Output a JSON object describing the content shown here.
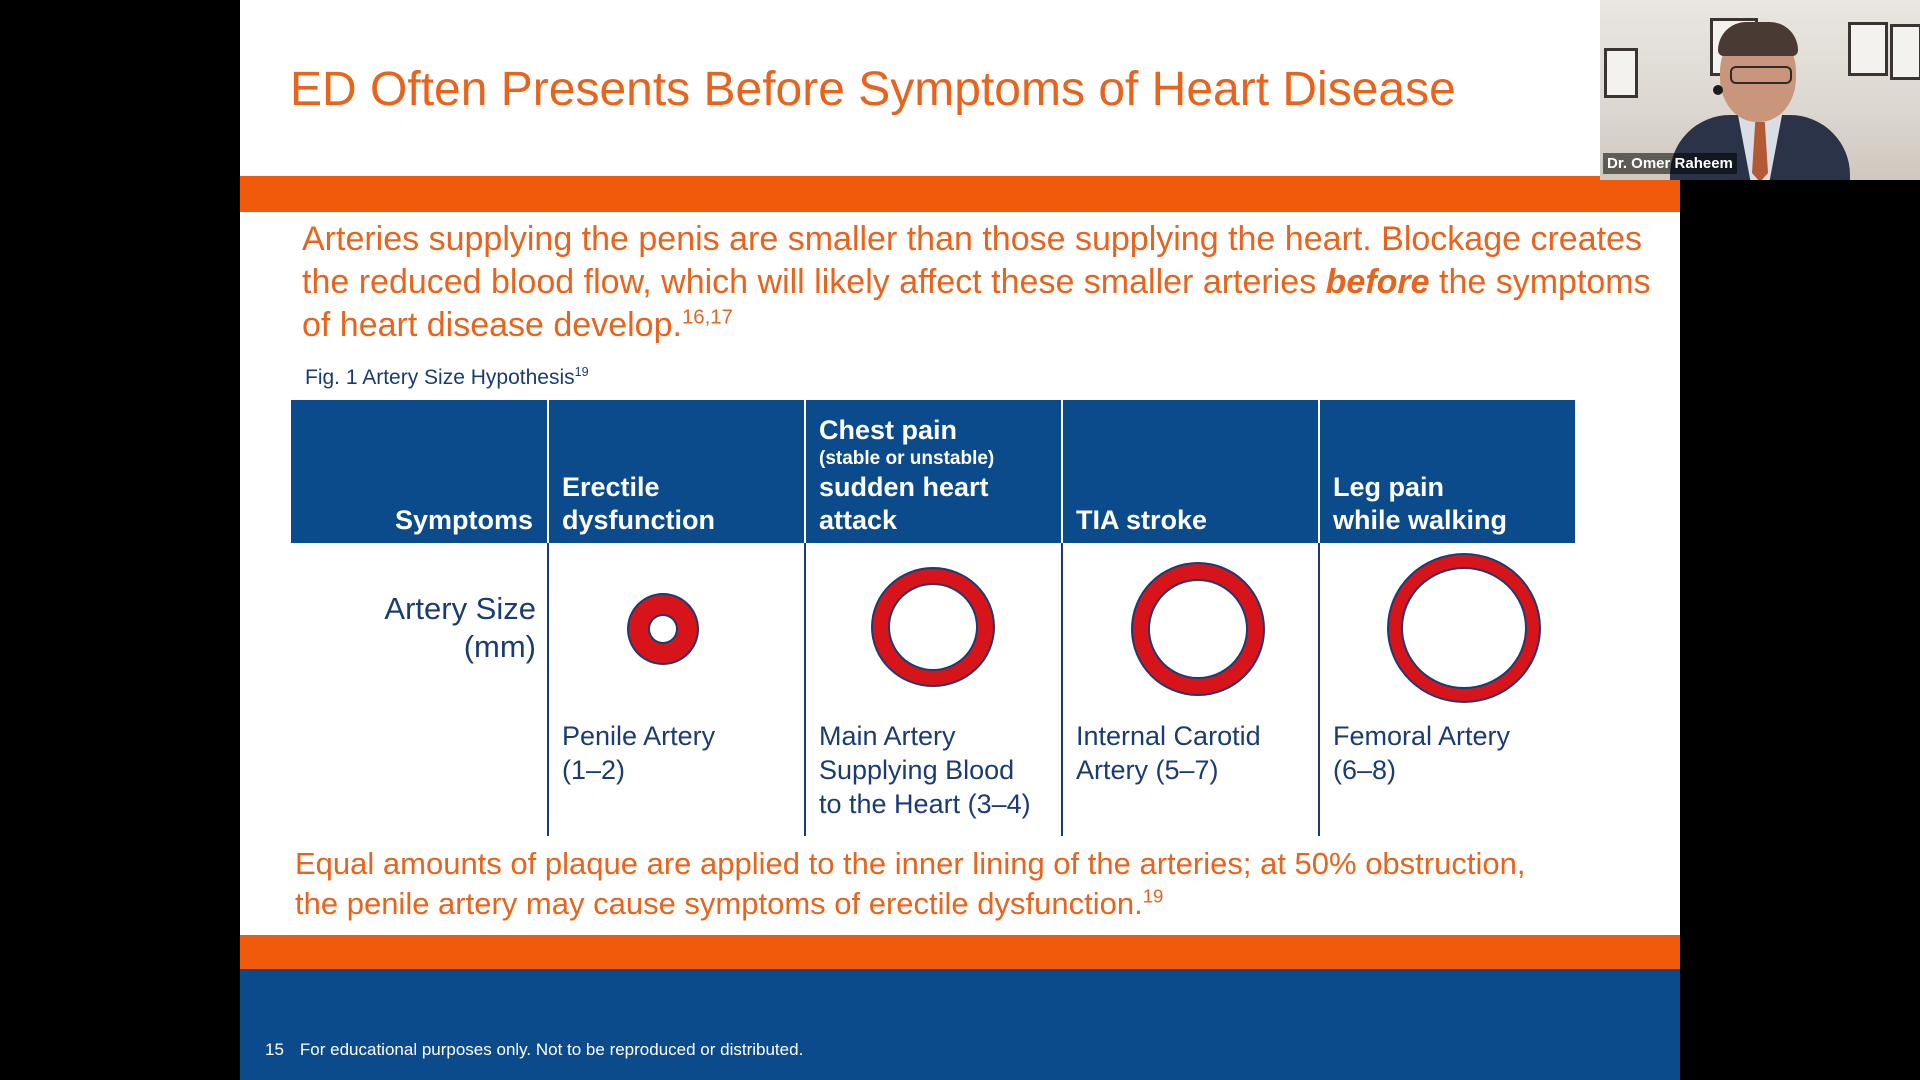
{
  "slide": {
    "title": "ED Often Presents Before Symptoms of Heart Disease",
    "intro_part1": "Arteries supplying the penis are smaller than those supplying the heart. Blockage creates the reduced blood flow, which will likely affect these smaller arteries ",
    "intro_emphasis": "before",
    "intro_part2": " the symptoms of heart disease develop.",
    "intro_ref": "16,17",
    "figure_caption": "Fig. 1 Artery Size Hypothesis",
    "figure_ref": "19",
    "table": {
      "header_label": "Symptoms",
      "row_label_line1": "Artery Size",
      "row_label_line2": "(mm)",
      "columns": [
        {
          "header_line1": "Erectile",
          "header_line2": "dysfunction",
          "artery_line1": "Penile Artery",
          "artery_line2": "(1–2)"
        },
        {
          "header_line1": "Chest pain",
          "header_small": "(stable or unstable)",
          "header_line2": "sudden heart",
          "header_line3": "attack",
          "artery_line1": "Main Artery",
          "artery_line2": "Supplying Blood",
          "artery_line3": "to the Heart (3–4)"
        },
        {
          "header_line1": "TIA stroke",
          "artery_line1": "Internal Carotid",
          "artery_line2": "Artery (5–7)"
        },
        {
          "header_line1": "Leg pain",
          "header_line2": "while walking",
          "artery_line1": "Femoral Artery",
          "artery_line2": "(6–8)"
        }
      ]
    },
    "conclusion_line1": "Equal amounts of plaque are applied to the inner lining of the arteries; at 50% obstruction,",
    "conclusion_line2": "the penile artery may cause symptoms of erectile dysfunction.",
    "conclusion_ref": "19",
    "footer_page": "15",
    "footer_text": "For educational purposes only. Not to be reproduced or distributed."
  },
  "webcam": {
    "participant_name": "Dr. Omer Raheem"
  },
  "colors": {
    "accent_orange": "#f05a0a",
    "text_orange": "#e8641c",
    "brand_blue": "#0b4a8b",
    "artery_red": "#d7141a"
  }
}
